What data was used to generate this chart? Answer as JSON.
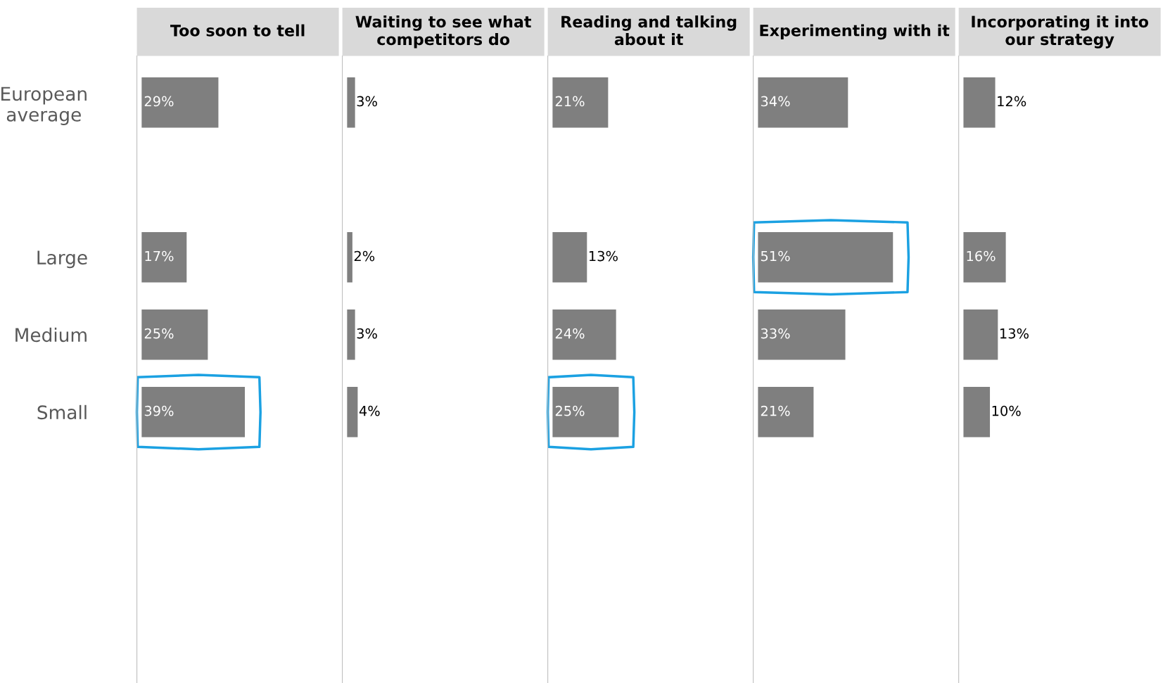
{
  "chart_data": [
    {
      "type": "bar",
      "orientation": "horizontal",
      "title": "Too soon to tell",
      "categories": [
        "European\naverage",
        null,
        "Large",
        "Medium",
        "Small",
        null,
        null,
        null
      ],
      "values": [
        29,
        null,
        17,
        25,
        39,
        null,
        null,
        null
      ],
      "value_labels": [
        "29%",
        null,
        "17%",
        "25%",
        "39%",
        null,
        null,
        null
      ],
      "color": "#7f7f7f",
      "tick_labels": "y",
      "grid": false
    },
    {
      "type": "bar",
      "orientation": "horizontal",
      "title": "Waiting to see what\ncompetitors do",
      "values": [
        3,
        null,
        2,
        3,
        4,
        null,
        null,
        null
      ],
      "value_labels": [
        "3%",
        null,
        "2%",
        "3%",
        "4%",
        null,
        null,
        null
      ],
      "color": "#7f7f7f",
      "tick_labels": false,
      "grid": false
    },
    {
      "type": "bar",
      "orientation": "horizontal",
      "title": "Reading and talking\nabout it",
      "values": [
        21,
        null,
        13,
        24,
        25,
        null,
        null,
        null
      ],
      "value_labels": [
        "21%",
        null,
        "13%",
        "24%",
        "25%",
        null,
        null,
        null
      ],
      "color": "#7f7f7f",
      "tick_labels": false,
      "grid": false
    },
    {
      "type": "bar",
      "orientation": "horizontal",
      "title": "Experimenting with it",
      "values": [
        34,
        null,
        51,
        33,
        21,
        null,
        null,
        null
      ],
      "value_labels": [
        "34%",
        null,
        "51%",
        "33%",
        "21%",
        null,
        null,
        null
      ],
      "color": "#7f7f7f",
      "tick_labels": false,
      "grid": false
    },
    {
      "type": "bar",
      "orientation": "horizontal",
      "title": "Incorporating it into\nour strategy",
      "values": [
        12,
        null,
        16,
        13,
        10,
        null,
        null,
        null
      ],
      "value_labels": [
        "12%",
        null,
        "16%",
        "13%",
        "10%",
        null,
        null,
        null
      ],
      "color": "#7f7f7f",
      "tick_labels": false,
      "grid": false
    }
  ]
}
